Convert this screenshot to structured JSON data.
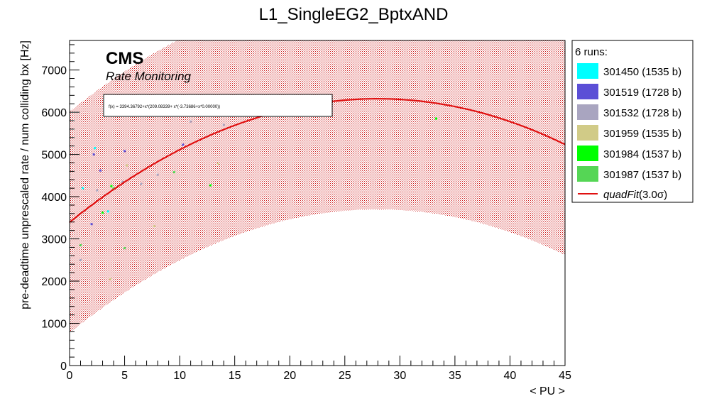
{
  "chart_data": {
    "type": "scatter",
    "title": "L1_SingleEG2_BptxAND",
    "xlabel": "< PU >",
    "ylabel": "pre-deadtime unprescaled rate / num colliding bx [Hz]",
    "xlim": [
      0,
      45
    ],
    "ylim": [
      0,
      7700
    ],
    "x_ticks": [
      0,
      5,
      10,
      15,
      20,
      25,
      30,
      35,
      40,
      45
    ],
    "y_ticks": [
      0,
      1000,
      2000,
      3000,
      4000,
      5000,
      6000,
      7000
    ],
    "grid": false,
    "legend_placement": "right-outside",
    "legend": {
      "header": "6 runs:",
      "fit_label_name": "quadFit",
      "fit_label_arg": "(3.0σ)"
    },
    "annotations": {
      "experiment": "CMS",
      "subtitle": "Rate Monitoring",
      "formula": "f(x) = 3394.36792+x*(209.08339+ x*(-3.73686+x*0.00000))"
    },
    "fit": {
      "name": "quadFit",
      "coefficients": [
        3394.36792,
        209.08339,
        -3.73686
      ],
      "band_sigma": 3.0,
      "band_halfwidth": 2620,
      "color": "#e01010"
    },
    "series": [
      {
        "name": "301450 (1535 b)",
        "color": "#00ffff",
        "points": [
          [
            1.2,
            4200
          ],
          [
            2.3,
            5150
          ],
          [
            3.5,
            3650
          ]
        ]
      },
      {
        "name": "301519 (1728 b)",
        "color": "#5b4fd6",
        "points": [
          [
            2.0,
            3350
          ],
          [
            2.2,
            5000
          ],
          [
            2.8,
            4620
          ],
          [
            5.0,
            5080
          ],
          [
            10.3,
            5230
          ]
        ]
      },
      {
        "name": "301532 (1728 b)",
        "color": "#a9a5c0",
        "points": [
          [
            1.0,
            2500
          ],
          [
            2.5,
            4150
          ],
          [
            4.8,
            4350
          ],
          [
            6.5,
            4300
          ],
          [
            8.0,
            4520
          ],
          [
            11.0,
            5780
          ],
          [
            14.0,
            5700
          ]
        ]
      },
      {
        "name": "301959 (1535 b)",
        "color": "#d1cb87",
        "points": [
          [
            3.7,
            2050
          ],
          [
            5.2,
            4740
          ],
          [
            7.7,
            3300
          ],
          [
            13.5,
            4780
          ]
        ]
      },
      {
        "name": "301984 (1537 b)",
        "color": "#00ff00",
        "points": [
          [
            3.0,
            3620
          ],
          [
            3.8,
            4250
          ],
          [
            12.8,
            4270
          ],
          [
            33.3,
            5850
          ]
        ]
      },
      {
        "name": "301987 (1537 b)",
        "color": "#55d655",
        "points": [
          [
            1.0,
            2850
          ],
          [
            5.0,
            2780
          ],
          [
            9.5,
            4580
          ],
          [
            4.0,
            4200
          ]
        ]
      }
    ]
  }
}
